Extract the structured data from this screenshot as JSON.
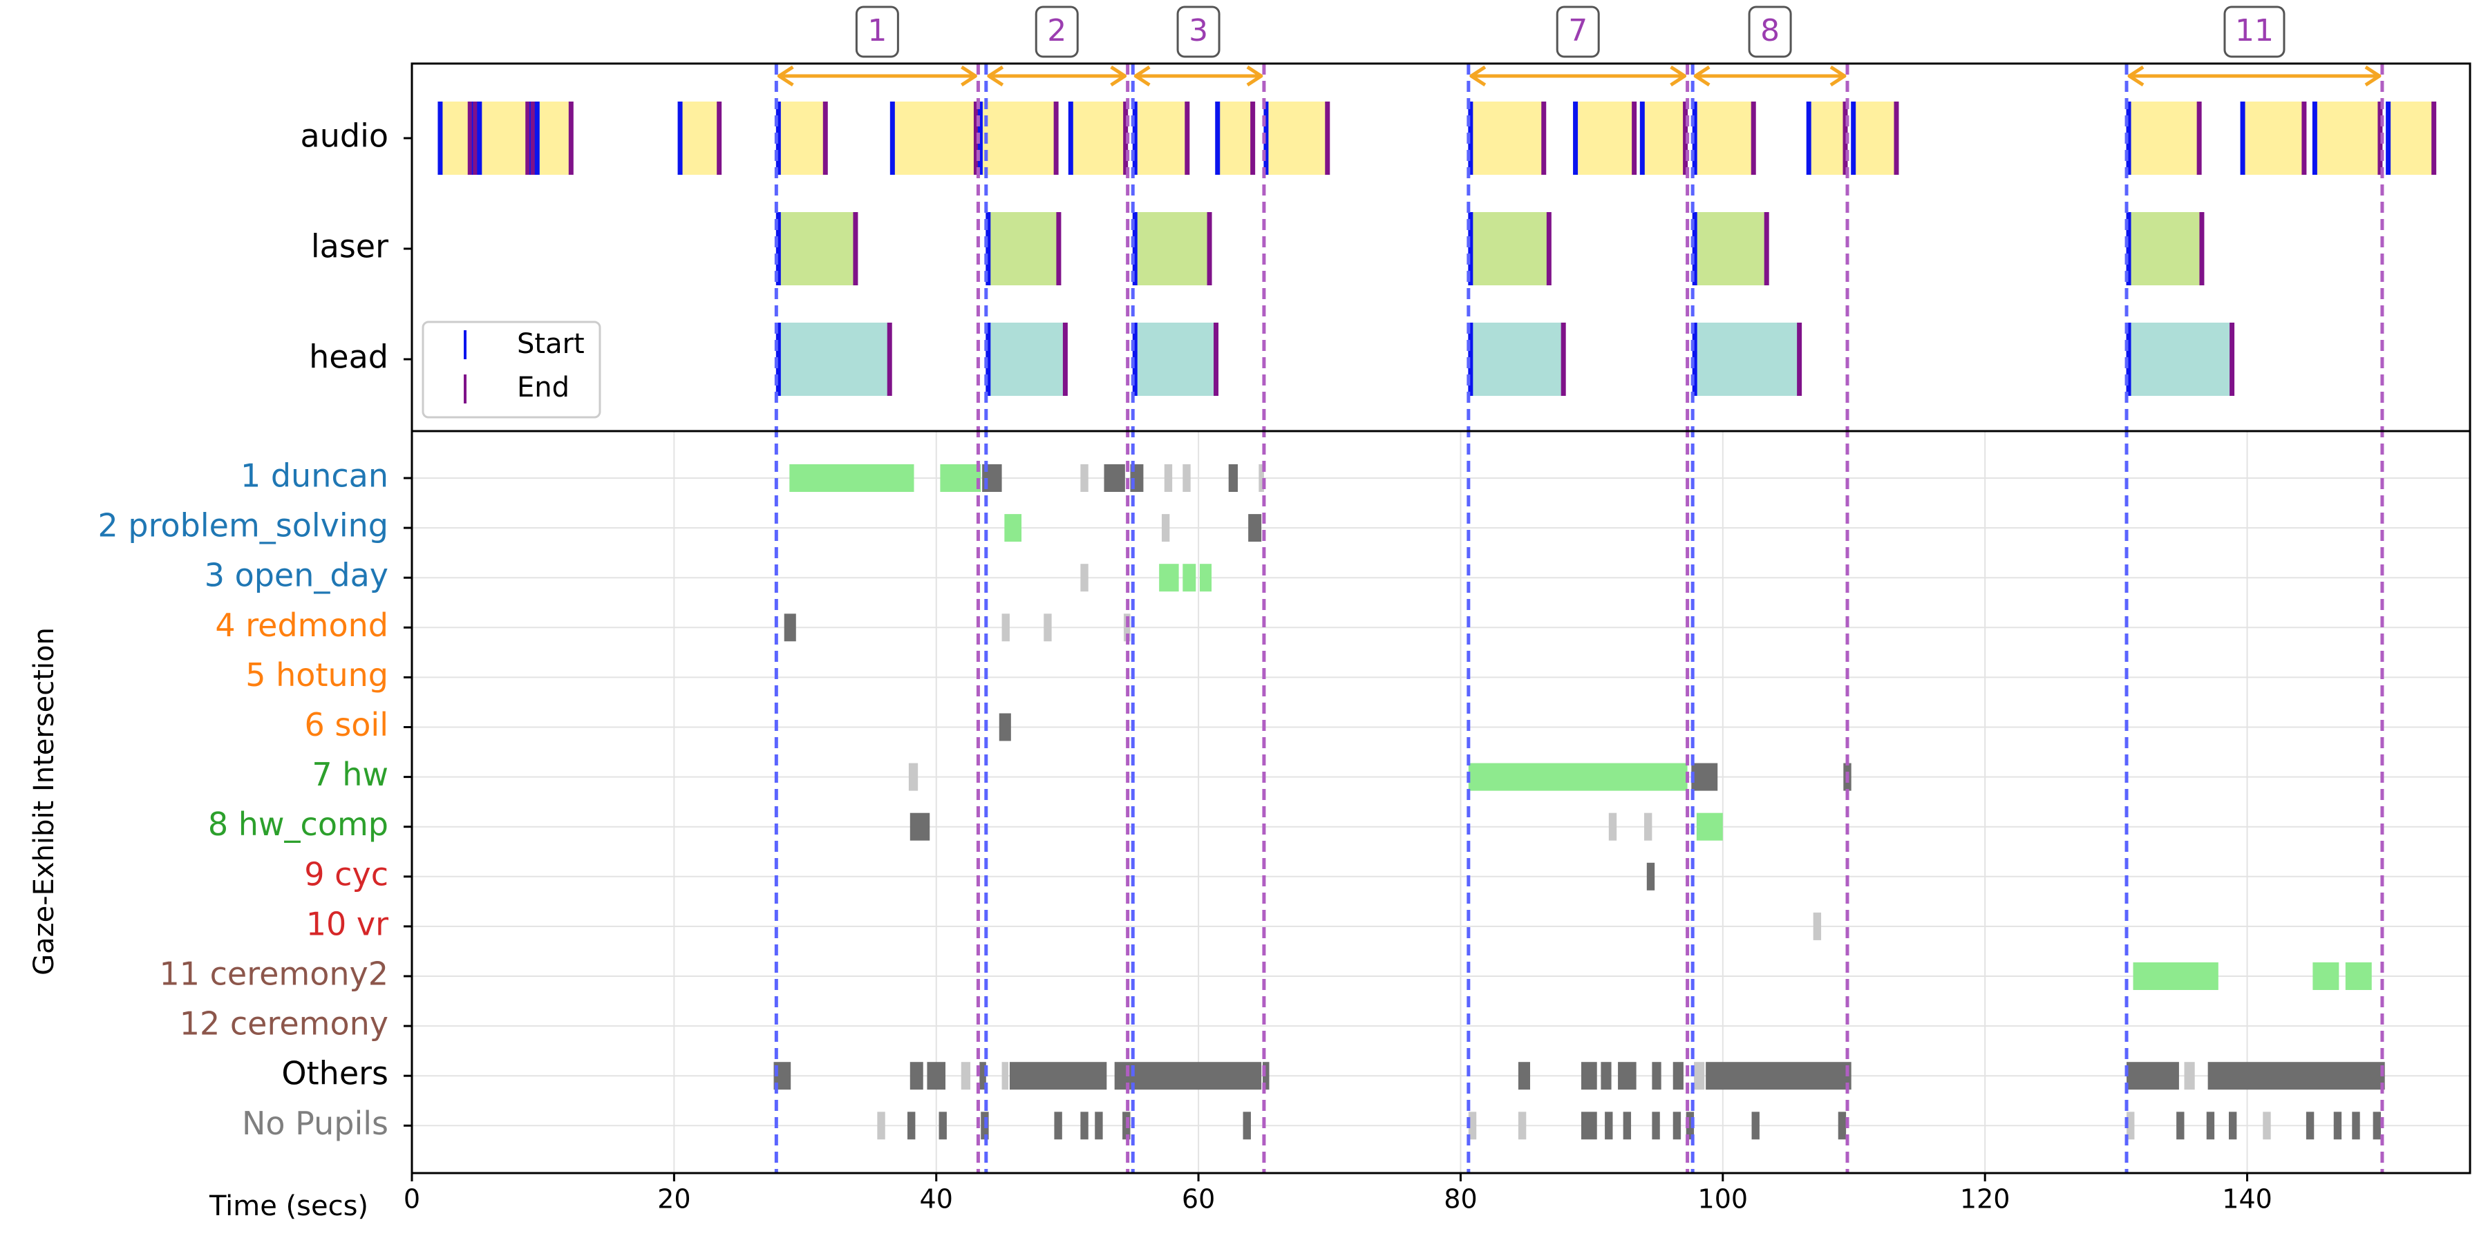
{
  "chart_data": {
    "type": "timeline",
    "xlabel": "Time (secs)",
    "ylabel": "Gaze-Exhibit Intersection",
    "xlim": [
      0,
      157
    ],
    "xticks": [
      0,
      20,
      40,
      60,
      80,
      100,
      120,
      140
    ],
    "colors": {
      "audio": "#fff09e",
      "laser": "#c9e593",
      "head": "#aeded8",
      "start": "#0a14ee",
      "end": "#7f1289",
      "start_line": "#5a64ff",
      "end_line": "#b05ec2",
      "span_arrow": "#f5a623",
      "span_label": "#9b3db0",
      "gaze_hit": "#8eea8e",
      "gaze_dark": "#6e6e6e",
      "gaze_light": "#c8c8c8",
      "grid": "#e3e3e3"
    },
    "legend": {
      "position": "lower-left",
      "entries": [
        {
          "label": "Start",
          "color": "#0a14ee"
        },
        {
          "label": "End",
          "color": "#7f1289"
        }
      ]
    },
    "spans": [
      {
        "label": "1",
        "start": 27.8,
        "end": 43.2
      },
      {
        "label": "2",
        "start": 43.8,
        "end": 54.6
      },
      {
        "label": "3",
        "start": 55.0,
        "end": 65.0
      },
      {
        "label": "7",
        "start": 80.6,
        "end": 97.3
      },
      {
        "label": "8",
        "start": 97.7,
        "end": 109.5
      },
      {
        "label": "11",
        "start": 130.8,
        "end": 150.3
      }
    ],
    "start_lines": [
      27.8,
      43.8,
      55.0,
      80.6,
      97.7,
      130.8
    ],
    "end_lines": [
      43.2,
      54.6,
      65.0,
      97.3,
      109.5,
      150.3
    ],
    "top_rows": [
      "audio",
      "laser",
      "head"
    ],
    "top_segments": {
      "audio": [
        [
          2.0,
          4.6
        ],
        [
          4.6,
          5.0
        ],
        [
          5.0,
          9.0
        ],
        [
          9.0,
          9.4
        ],
        [
          9.4,
          12.3
        ],
        [
          20.3,
          23.6
        ],
        [
          27.8,
          31.7
        ],
        [
          36.5,
          43.2
        ],
        [
          43.2,
          49.3
        ],
        [
          50.1,
          54.6
        ],
        [
          55.0,
          59.3
        ],
        [
          61.3,
          64.3
        ],
        [
          65.0,
          70.0
        ],
        [
          80.6,
          86.5
        ],
        [
          88.6,
          93.4
        ],
        [
          93.7,
          97.3
        ],
        [
          97.7,
          102.5
        ],
        [
          106.4,
          109.5
        ],
        [
          109.8,
          113.4
        ],
        [
          130.8,
          136.5
        ],
        [
          139.5,
          144.5
        ],
        [
          145.0,
          150.3
        ],
        [
          150.6,
          154.4
        ]
      ],
      "laser": [
        [
          27.8,
          34.0
        ],
        [
          43.8,
          49.5
        ],
        [
          55.0,
          61.0
        ],
        [
          80.6,
          86.9
        ],
        [
          97.7,
          103.5
        ],
        [
          130.8,
          136.7
        ]
      ],
      "head": [
        [
          27.8,
          36.6
        ],
        [
          43.8,
          50.0
        ],
        [
          55.0,
          61.5
        ],
        [
          80.6,
          88.0
        ],
        [
          97.7,
          106.0
        ],
        [
          130.8,
          139.0
        ]
      ]
    },
    "gaze_rows": [
      {
        "label": "1 duncan",
        "color": "#1f77b4"
      },
      {
        "label": "2 problem_solving",
        "color": "#1f77b4"
      },
      {
        "label": "3 open_day",
        "color": "#1f77b4"
      },
      {
        "label": "4 redmond",
        "color": "#ff7f0e"
      },
      {
        "label": "5 hotung",
        "color": "#ff7f0e"
      },
      {
        "label": "6 soil",
        "color": "#ff7f0e"
      },
      {
        "label": "7 hw",
        "color": "#2ca02c"
      },
      {
        "label": "8 hw_comp",
        "color": "#2ca02c"
      },
      {
        "label": "9 cyc",
        "color": "#d62728"
      },
      {
        "label": "10 vr",
        "color": "#d62728"
      },
      {
        "label": "11 ceremony2",
        "color": "#8c564b"
      },
      {
        "label": "12 ceremony",
        "color": "#8c564b"
      },
      {
        "label": "Others",
        "color": "#000000"
      },
      {
        "label": "No Pupils",
        "color": "#7f7f7f"
      }
    ],
    "gaze_segments": [
      {
        "row": 0,
        "kind": "hit",
        "start": 28.8,
        "end": 38.3
      },
      {
        "row": 0,
        "kind": "hit",
        "start": 40.3,
        "end": 43.4
      },
      {
        "row": 0,
        "kind": "dark",
        "start": 43.5,
        "end": 45.0
      },
      {
        "row": 0,
        "kind": "light",
        "start": 51.0,
        "end": 51.6
      },
      {
        "row": 0,
        "kind": "dark",
        "start": 52.8,
        "end": 54.4
      },
      {
        "row": 0,
        "kind": "dark",
        "start": 54.8,
        "end": 55.8
      },
      {
        "row": 0,
        "kind": "light",
        "start": 57.4,
        "end": 58.0
      },
      {
        "row": 0,
        "kind": "light",
        "start": 58.8,
        "end": 59.4
      },
      {
        "row": 0,
        "kind": "dark",
        "start": 62.3,
        "end": 63.0
      },
      {
        "row": 0,
        "kind": "light",
        "start": 64.6,
        "end": 65.0
      },
      {
        "row": 1,
        "kind": "hit",
        "start": 45.2,
        "end": 46.5
      },
      {
        "row": 1,
        "kind": "light",
        "start": 57.2,
        "end": 57.8
      },
      {
        "row": 1,
        "kind": "dark",
        "start": 63.8,
        "end": 64.8
      },
      {
        "row": 2,
        "kind": "light",
        "start": 51.0,
        "end": 51.6
      },
      {
        "row": 2,
        "kind": "hit",
        "start": 57.0,
        "end": 58.5
      },
      {
        "row": 2,
        "kind": "hit",
        "start": 58.8,
        "end": 59.8
      },
      {
        "row": 2,
        "kind": "hit",
        "start": 60.1,
        "end": 61.0
      },
      {
        "row": 3,
        "kind": "dark",
        "start": 28.4,
        "end": 29.3
      },
      {
        "row": 3,
        "kind": "light",
        "start": 45.0,
        "end": 45.6
      },
      {
        "row": 3,
        "kind": "light",
        "start": 48.2,
        "end": 48.8
      },
      {
        "row": 3,
        "kind": "light",
        "start": 54.3,
        "end": 54.8
      },
      {
        "row": 5,
        "kind": "dark",
        "start": 44.8,
        "end": 45.7
      },
      {
        "row": 6,
        "kind": "light",
        "start": 37.9,
        "end": 38.6
      },
      {
        "row": 6,
        "kind": "hit",
        "start": 80.6,
        "end": 97.3
      },
      {
        "row": 6,
        "kind": "dark",
        "start": 97.6,
        "end": 99.6
      },
      {
        "row": 6,
        "kind": "dark",
        "start": 109.2,
        "end": 109.8
      },
      {
        "row": 7,
        "kind": "dark",
        "start": 38.0,
        "end": 39.5
      },
      {
        "row": 7,
        "kind": "light",
        "start": 91.3,
        "end": 91.9
      },
      {
        "row": 7,
        "kind": "light",
        "start": 94.0,
        "end": 94.6
      },
      {
        "row": 7,
        "kind": "hit",
        "start": 98.0,
        "end": 100.0
      },
      {
        "row": 8,
        "kind": "dark",
        "start": 94.2,
        "end": 94.8
      },
      {
        "row": 9,
        "kind": "light",
        "start": 106.9,
        "end": 107.5
      },
      {
        "row": 10,
        "kind": "hit",
        "start": 131.3,
        "end": 137.8
      },
      {
        "row": 10,
        "kind": "hit",
        "start": 145.0,
        "end": 147.0
      },
      {
        "row": 10,
        "kind": "hit",
        "start": 147.5,
        "end": 149.5
      },
      {
        "row": 12,
        "kind": "dark",
        "start": 27.6,
        "end": 28.9
      },
      {
        "row": 12,
        "kind": "dark",
        "start": 38.0,
        "end": 39.0
      },
      {
        "row": 12,
        "kind": "dark",
        "start": 39.3,
        "end": 40.7
      },
      {
        "row": 12,
        "kind": "light",
        "start": 41.9,
        "end": 42.6
      },
      {
        "row": 12,
        "kind": "dark",
        "start": 43.3,
        "end": 43.8
      },
      {
        "row": 12,
        "kind": "light",
        "start": 45.0,
        "end": 45.5
      },
      {
        "row": 12,
        "kind": "dark",
        "start": 45.6,
        "end": 53.0
      },
      {
        "row": 12,
        "kind": "dark",
        "start": 53.6,
        "end": 64.8
      },
      {
        "row": 12,
        "kind": "dark",
        "start": 64.9,
        "end": 65.4
      },
      {
        "row": 12,
        "kind": "dark",
        "start": 84.4,
        "end": 85.3
      },
      {
        "row": 12,
        "kind": "dark",
        "start": 89.2,
        "end": 90.4
      },
      {
        "row": 12,
        "kind": "dark",
        "start": 90.7,
        "end": 91.5
      },
      {
        "row": 12,
        "kind": "dark",
        "start": 92.0,
        "end": 93.4
      },
      {
        "row": 12,
        "kind": "dark",
        "start": 94.6,
        "end": 95.3
      },
      {
        "row": 12,
        "kind": "dark",
        "start": 96.2,
        "end": 97.0
      },
      {
        "row": 12,
        "kind": "light",
        "start": 97.8,
        "end": 98.6
      },
      {
        "row": 12,
        "kind": "dark",
        "start": 98.7,
        "end": 109.8
      },
      {
        "row": 12,
        "kind": "dark",
        "start": 130.8,
        "end": 134.8
      },
      {
        "row": 12,
        "kind": "light",
        "start": 135.2,
        "end": 136.0
      },
      {
        "row": 12,
        "kind": "dark",
        "start": 137.0,
        "end": 150.5
      },
      {
        "row": 13,
        "kind": "light",
        "start": 35.5,
        "end": 36.1
      },
      {
        "row": 13,
        "kind": "dark",
        "start": 37.8,
        "end": 38.4
      },
      {
        "row": 13,
        "kind": "dark",
        "start": 40.2,
        "end": 40.8
      },
      {
        "row": 13,
        "kind": "dark",
        "start": 43.4,
        "end": 44.0
      },
      {
        "row": 13,
        "kind": "dark",
        "start": 49.0,
        "end": 49.6
      },
      {
        "row": 13,
        "kind": "dark",
        "start": 51.0,
        "end": 51.6
      },
      {
        "row": 13,
        "kind": "dark",
        "start": 52.1,
        "end": 52.7
      },
      {
        "row": 13,
        "kind": "dark",
        "start": 54.2,
        "end": 54.8
      },
      {
        "row": 13,
        "kind": "dark",
        "start": 63.4,
        "end": 64.0
      },
      {
        "row": 13,
        "kind": "light",
        "start": 80.6,
        "end": 81.2
      },
      {
        "row": 13,
        "kind": "light",
        "start": 84.4,
        "end": 85.0
      },
      {
        "row": 13,
        "kind": "dark",
        "start": 89.2,
        "end": 90.4
      },
      {
        "row": 13,
        "kind": "dark",
        "start": 91.0,
        "end": 91.6
      },
      {
        "row": 13,
        "kind": "dark",
        "start": 92.4,
        "end": 93.0
      },
      {
        "row": 13,
        "kind": "dark",
        "start": 94.6,
        "end": 95.2
      },
      {
        "row": 13,
        "kind": "dark",
        "start": 96.2,
        "end": 96.8
      },
      {
        "row": 13,
        "kind": "dark",
        "start": 97.2,
        "end": 97.8
      },
      {
        "row": 13,
        "kind": "dark",
        "start": 102.2,
        "end": 102.8
      },
      {
        "row": 13,
        "kind": "dark",
        "start": 108.8,
        "end": 109.4
      },
      {
        "row": 13,
        "kind": "light",
        "start": 130.8,
        "end": 131.4
      },
      {
        "row": 13,
        "kind": "dark",
        "start": 134.6,
        "end": 135.2
      },
      {
        "row": 13,
        "kind": "dark",
        "start": 136.9,
        "end": 137.5
      },
      {
        "row": 13,
        "kind": "dark",
        "start": 138.6,
        "end": 139.2
      },
      {
        "row": 13,
        "kind": "light",
        "start": 141.2,
        "end": 141.8
      },
      {
        "row": 13,
        "kind": "dark",
        "start": 144.5,
        "end": 145.1
      },
      {
        "row": 13,
        "kind": "dark",
        "start": 146.6,
        "end": 147.2
      },
      {
        "row": 13,
        "kind": "dark",
        "start": 148.0,
        "end": 148.6
      },
      {
        "row": 13,
        "kind": "dark",
        "start": 149.6,
        "end": 150.2
      }
    ]
  }
}
